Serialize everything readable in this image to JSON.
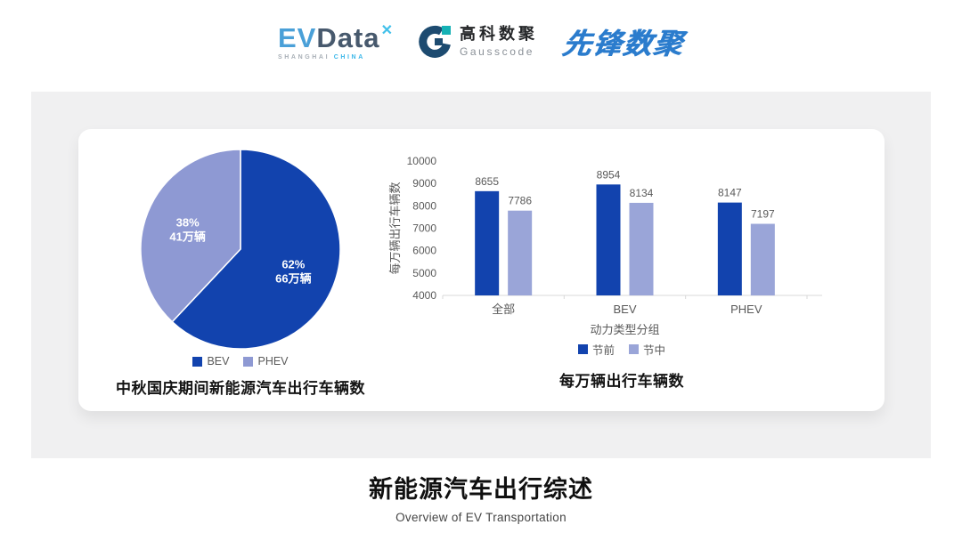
{
  "header": {
    "evdata": {
      "part1": "EV",
      "part2": "Data",
      "x_mark": "✕",
      "sub1": "SHANGHAI",
      "sub2": "CHINA"
    },
    "gausscode": {
      "cn": "高科数聚",
      "en": "Gausscode"
    },
    "xianfeng": {
      "text": "先锋数聚"
    }
  },
  "colors": {
    "brand_dark_blue": "#1243ae",
    "pie_light_purple": "#8e99d3",
    "bar_light_purple": "#9aa5d8",
    "panel_background": "#f0f0f1",
    "axis_text_gray": "#595959"
  },
  "chart_data": [
    {
      "type": "pie",
      "title": "中秋国庆期间新能源汽车出行车辆数",
      "direction": "clockwise",
      "start_angle": "12-oclock",
      "slices": [
        {
          "name": "BEV",
          "percent": 62,
          "value_label": "66万辆",
          "color": "#1243ae",
          "text_color": "#ffffff"
        },
        {
          "name": "PHEV",
          "percent": 38,
          "value_label": "41万辆",
          "color": "#8e99d3",
          "text_color": "#ffffff"
        }
      ],
      "legend_position": "bottom"
    },
    {
      "type": "bar",
      "title": "每万辆出行车辆数",
      "categories": [
        "全部",
        "BEV",
        "PHEV"
      ],
      "series": [
        {
          "name": "节前",
          "color": "#1243ae",
          "values": [
            8655,
            8954,
            8147
          ]
        },
        {
          "name": "节中",
          "color": "#9aa5d8",
          "values": [
            7786,
            8134,
            7197
          ]
        }
      ],
      "ylabel": "每万辆出行车辆数",
      "xlabel": "动力类型分组",
      "ylim": [
        4000,
        10000
      ],
      "ytick_step": 1000,
      "grid": false,
      "legend_position": "bottom"
    }
  ],
  "footer": {
    "title": "新能源汽车出行综述",
    "subtitle": "Overview of EV Transportation"
  }
}
